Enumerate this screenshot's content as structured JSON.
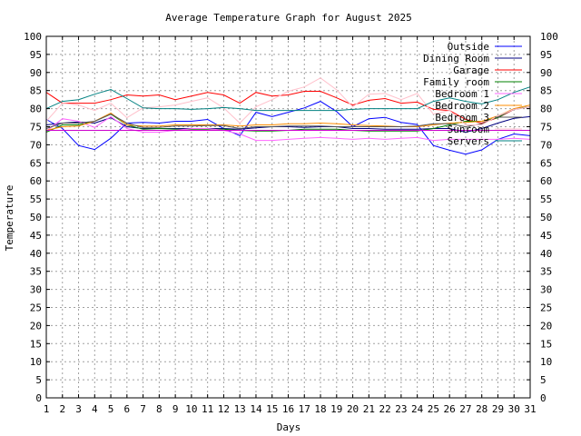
{
  "chart_data": {
    "type": "line",
    "title": "Average Temperature Graph for August 2025",
    "xlabel": "Days",
    "ylabel": "Temperature",
    "xlim": [
      1,
      31
    ],
    "ylim": [
      0,
      100
    ],
    "xticks": [
      "1",
      "2",
      "3",
      "4",
      "5",
      "6",
      "7",
      "8",
      "9",
      "10",
      "11",
      "12",
      "13",
      "14",
      "15",
      "16",
      "17",
      "18",
      "19",
      "20",
      "21",
      "22",
      "23",
      "24",
      "25",
      "26",
      "27",
      "28",
      "29",
      "30",
      "31"
    ],
    "yticks": [
      "0",
      "5",
      "10",
      "15",
      "20",
      "25",
      "30",
      "35",
      "40",
      "45",
      "50",
      "55",
      "60",
      "65",
      "70",
      "75",
      "80",
      "85",
      "90",
      "95",
      "100"
    ],
    "grid": true,
    "legend_position": "top-right",
    "x": [
      1,
      2,
      3,
      4,
      5,
      6,
      7,
      8,
      9,
      10,
      11,
      12,
      13,
      14,
      15,
      16,
      17,
      18,
      19,
      20,
      21,
      22,
      23,
      24,
      25,
      26,
      27,
      28,
      29,
      30,
      31
    ],
    "series": [
      {
        "name": "Outside",
        "color": "#0000ff",
        "values": [
          77,
          74.5,
          69.8,
          68.7,
          71.8,
          76,
          76.2,
          76,
          76.5,
          76.5,
          77,
          74.5,
          72.5,
          79,
          77.8,
          79,
          80.2,
          82,
          79.2,
          75,
          77.2,
          77.6,
          76.2,
          75.6,
          69.8,
          68.5,
          67.4,
          68.6,
          71.5,
          73,
          72.5
        ]
      },
      {
        "name": "Dining Room",
        "color": "#000080",
        "values": [
          75.5,
          76,
          76.3,
          76,
          77.5,
          75,
          74.5,
          74.5,
          74.5,
          74.5,
          74.5,
          74.5,
          74.3,
          74.7,
          75,
          75,
          74.8,
          75,
          75,
          74.5,
          74.5,
          74.3,
          74.3,
          74.3,
          74.5,
          74.5,
          73.5,
          74.5,
          76,
          77.3,
          77.8
        ]
      },
      {
        "name": "Garage",
        "color": "#ff0000",
        "values": [
          84.5,
          81.5,
          81.5,
          81.5,
          82.5,
          83.8,
          83.5,
          83.8,
          82.5,
          83.5,
          84.5,
          83.8,
          81.5,
          84.5,
          83.5,
          83.8,
          84.8,
          84.8,
          83,
          81,
          82.3,
          82.8,
          81.5,
          81.8,
          79.8,
          79.5,
          77,
          76,
          77.5,
          79.8,
          80.5
        ]
      },
      {
        "name": "Family room",
        "color": "#008000",
        "values": [
          73.5,
          75.5,
          75.5,
          76.5,
          78.5,
          75.5,
          74.3,
          74.5,
          74.3,
          74.3,
          74.3,
          74.3,
          74,
          73.8,
          73.8,
          74,
          74.3,
          74.3,
          74.3,
          74,
          73.8,
          73.8,
          73.8,
          73.8,
          74.5,
          75.5,
          76.5,
          76.5,
          77.5,
          80,
          80.5
        ]
      },
      {
        "name": "Bedroom 1",
        "color": "#ff66ff",
        "values": [
          73.8,
          77.2,
          76.5,
          74.8,
          77.8,
          74.5,
          73.5,
          73.5,
          74,
          74.5,
          74.5,
          74,
          73,
          71.2,
          71.2,
          71.5,
          71.8,
          72,
          71.8,
          71.5,
          71.8,
          71.5,
          71.8,
          72,
          71.2,
          71.5,
          71.5,
          71.5,
          71.5,
          71.8,
          71.5
        ]
      },
      {
        "name": "Bedroom 2",
        "color": "#ff8c00",
        "values": [
          74,
          75,
          75.2,
          76.5,
          78.8,
          75.5,
          75.2,
          75.2,
          75.5,
          75.5,
          75.5,
          75.5,
          75.2,
          75.5,
          75.5,
          75.8,
          75.8,
          76,
          75.8,
          75.5,
          75.3,
          75.2,
          75,
          75,
          75.5,
          76,
          76.2,
          76.5,
          78,
          80,
          81
        ]
      },
      {
        "name": "Bedroom 3",
        "color": "#555555",
        "values": [
          74.5,
          76,
          76,
          76.5,
          78.5,
          76,
          74.8,
          74.8,
          75.2,
          75.2,
          75.3,
          75.3,
          74.5,
          75,
          75,
          75.2,
          75.2,
          75.2,
          75,
          75,
          75,
          75,
          75,
          75.2,
          75.8,
          75.8,
          75,
          75.8,
          77.8,
          79.8,
          80.5
        ]
      },
      {
        "name": "Sunroom",
        "color": "#ffc0cb",
        "values": [
          76.5,
          81.5,
          81,
          79.5,
          81.5,
          77.5,
          80.2,
          80.5,
          81,
          82,
          83,
          80.2,
          76,
          80.5,
          82.5,
          84.8,
          86,
          88.5,
          85.2,
          80.5,
          84,
          84.2,
          82.5,
          84.2,
          78.5,
          79.5,
          75.5,
          75.5,
          78,
          79.8,
          80.5
        ]
      },
      {
        "name": "Servers",
        "color": "#008080",
        "values": [
          80,
          82,
          82.5,
          84,
          85.3,
          82.8,
          80.2,
          80,
          80,
          79.8,
          80,
          80.3,
          80,
          79.5,
          79.5,
          79.5,
          79.5,
          79.5,
          79.5,
          79.8,
          80,
          80,
          80,
          80,
          82,
          83,
          82,
          81.3,
          82.5,
          84.5,
          86
        ]
      },
      {
        "name": "",
        "color": "#cc00cc",
        "values": [
          74,
          74,
          74,
          74,
          74,
          74,
          74,
          74,
          74,
          74,
          74,
          74,
          74,
          74,
          74,
          74,
          74,
          74,
          74,
          74,
          74,
          74,
          74,
          74,
          74,
          74,
          74,
          74,
          74,
          74,
          74
        ]
      }
    ]
  }
}
